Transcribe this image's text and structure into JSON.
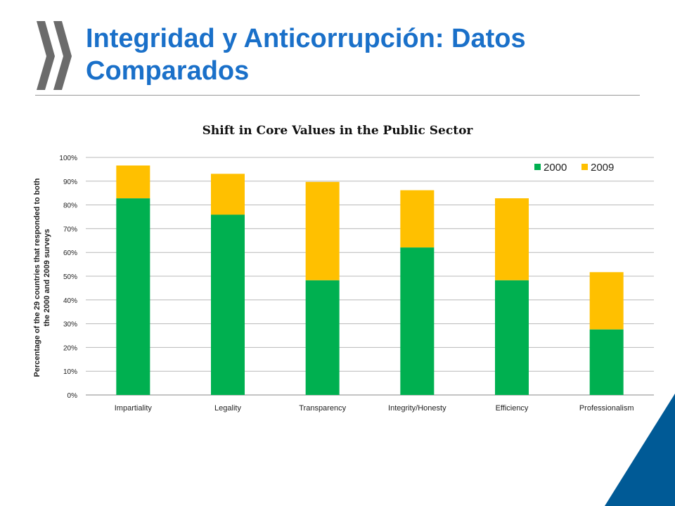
{
  "slide": {
    "title": "Integridad y Anticorrupción: Datos Comparados"
  },
  "colors": {
    "title": "#1a70c9",
    "series_2000": "#00b050",
    "series_2009": "#ffc000",
    "accent_corner": "#005a96",
    "logo": "#6b6b6b"
  },
  "icons": {
    "logo": "oecd-chevrons-logo"
  },
  "chart_data": {
    "type": "bar",
    "stacked": true,
    "title": "Shift in Core Values in the Public  Sector",
    "ylabel": "Percentage of the 29 countries that responded to both the 2000 and 2009 surveys",
    "xlabel": "",
    "ylim": [
      0,
      100
    ],
    "yticks": [
      "0%",
      "10%",
      "20%",
      "30%",
      "40%",
      "50%",
      "60%",
      "70%",
      "80%",
      "90%",
      "100%"
    ],
    "categories": [
      "Impartiality",
      "Legality",
      "Transparency",
      "Integrity/Honesty",
      "Efficiency",
      "Professionalism"
    ],
    "series": [
      {
        "name": "2000",
        "values": [
          82.8,
          75.9,
          48.3,
          62.1,
          48.3,
          27.6
        ]
      },
      {
        "name": "2009",
        "values": [
          13.8,
          17.2,
          41.4,
          24.1,
          34.5,
          24.1
        ]
      }
    ],
    "legend_position": "top-right",
    "grid": true
  }
}
